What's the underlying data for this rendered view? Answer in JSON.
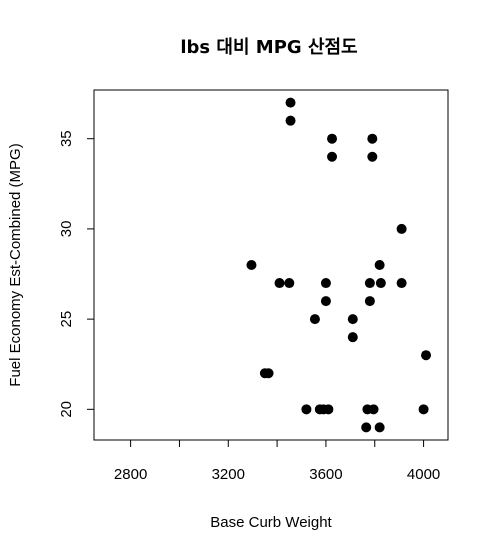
{
  "chart_data": {
    "type": "scatter",
    "title": "lbs 대비 MPG 산점도",
    "xlabel": "Base Curb Weight",
    "ylabel": "Fuel Economy Est-Combined (MPG)",
    "xlim": [
      2650,
      4100
    ],
    "ylim": [
      18.3,
      37.7
    ],
    "xticks": [
      2800,
      3000,
      3200,
      3400,
      3600,
      3800,
      4000
    ],
    "xtick_labels": [
      "2800",
      "",
      "3200",
      "",
      "3600",
      "",
      "4000"
    ],
    "yticks": [
      20,
      25,
      30,
      35
    ],
    "ytick_labels": [
      "20",
      "25",
      "30",
      "35"
    ],
    "grid": false,
    "legend": "none",
    "marker_color": "#000000",
    "points": [
      {
        "x": 3455,
        "y": 37
      },
      {
        "x": 3455,
        "y": 36
      },
      {
        "x": 3625,
        "y": 35
      },
      {
        "x": 3625,
        "y": 34
      },
      {
        "x": 3790,
        "y": 35
      },
      {
        "x": 3790,
        "y": 34
      },
      {
        "x": 3910,
        "y": 30
      },
      {
        "x": 3295,
        "y": 28
      },
      {
        "x": 3820,
        "y": 28
      },
      {
        "x": 3410,
        "y": 27
      },
      {
        "x": 3450,
        "y": 27
      },
      {
        "x": 3600,
        "y": 27
      },
      {
        "x": 3780,
        "y": 27
      },
      {
        "x": 3825,
        "y": 27
      },
      {
        "x": 3910,
        "y": 27
      },
      {
        "x": 3600,
        "y": 26
      },
      {
        "x": 3780,
        "y": 26
      },
      {
        "x": 3555,
        "y": 25
      },
      {
        "x": 3710,
        "y": 25
      },
      {
        "x": 3710,
        "y": 24
      },
      {
        "x": 4010,
        "y": 23
      },
      {
        "x": 3350,
        "y": 22
      },
      {
        "x": 3365,
        "y": 22
      },
      {
        "x": 3520,
        "y": 20
      },
      {
        "x": 3575,
        "y": 20
      },
      {
        "x": 3590,
        "y": 20
      },
      {
        "x": 3610,
        "y": 20
      },
      {
        "x": 3770,
        "y": 20
      },
      {
        "x": 3795,
        "y": 20
      },
      {
        "x": 4000,
        "y": 20
      },
      {
        "x": 3765,
        "y": 19
      },
      {
        "x": 3820,
        "y": 19
      }
    ]
  }
}
